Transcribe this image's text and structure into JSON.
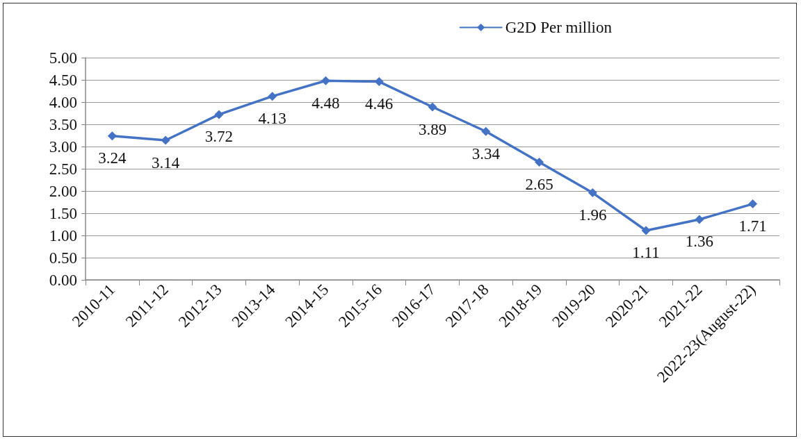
{
  "chart_data": {
    "type": "line",
    "categories": [
      "2010-11",
      "2011-12",
      "2012-13",
      "2013-14",
      "2014-15",
      "2015-16",
      "2016-17",
      "2017-18",
      "2018-19",
      "2019-20",
      "2020-21",
      "2021-22",
      "2022-23(August-22)"
    ],
    "series": [
      {
        "name": "G2D Per million",
        "color": "#4472c4",
        "values": [
          3.24,
          3.14,
          3.72,
          4.13,
          4.48,
          4.46,
          3.89,
          3.34,
          2.65,
          1.96,
          1.11,
          1.36,
          1.71
        ]
      }
    ],
    "ylim": [
      0,
      5
    ],
    "yticks": [
      {
        "value": 0,
        "label": "0.00"
      },
      {
        "value": 0.5,
        "label": "0.50"
      },
      {
        "value": 1,
        "label": "1.00"
      },
      {
        "value": 1.5,
        "label": "1.50"
      },
      {
        "value": 2,
        "label": "2.00"
      },
      {
        "value": 2.5,
        "label": "2.50"
      },
      {
        "value": 3,
        "label": "3.00"
      },
      {
        "value": 3.5,
        "label": "3.50"
      },
      {
        "value": 4,
        "label": "4.00"
      },
      {
        "value": 4.5,
        "label": "4.50"
      },
      {
        "value": 5,
        "label": "5.00"
      }
    ],
    "grid": "y",
    "legend": "top right",
    "marker": "diamond",
    "line_style": "solid",
    "data_labels": true
  }
}
